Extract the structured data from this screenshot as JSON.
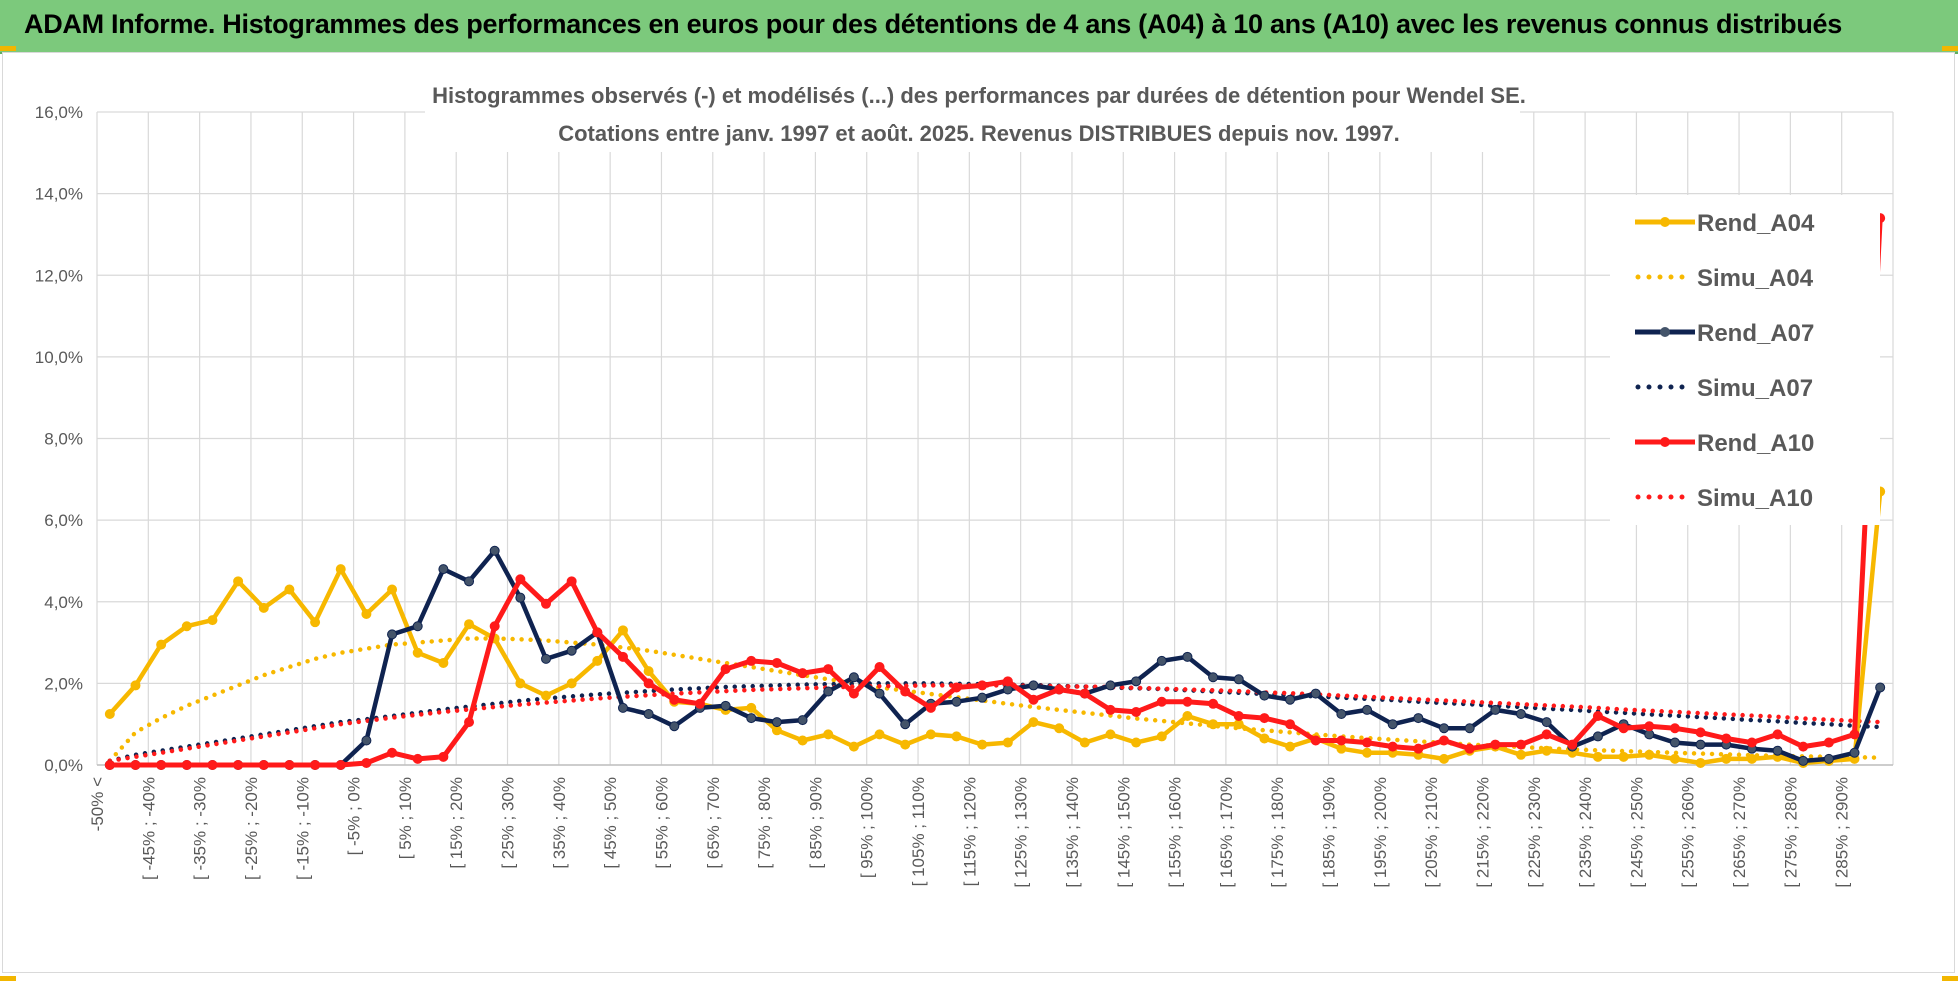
{
  "banner": {
    "title": "ADAM Informe. Histogrammes des performances en euros pour des détentions de 4 ans (A04) à 10 ans (A10) avec les revenus connus distribués"
  },
  "colors": {
    "banner_bg": "#7cc97c",
    "corner_accent": "#f2b600",
    "grid": "#d9d9d9",
    "text": "#595959"
  },
  "chart_data": {
    "type": "line",
    "title_lines": [
      "Histogrammes observés (-) et modélisés (...) des performances par durées de détention pour Wendel SE.",
      "Cotations entre janv. 1997 et août. 2025. Revenus DISTRIBUES depuis nov. 1997."
    ],
    "xlabel": "",
    "ylabel": "",
    "ylim": [
      0,
      0.16
    ],
    "yticks": [
      "0,0%",
      "2,0%",
      "4,0%",
      "6,0%",
      "8,0%",
      "10,0%",
      "12,0%",
      "14,0%",
      "16,0%"
    ],
    "grid": true,
    "legend_position": "right",
    "x_labels": [
      "-50% <",
      "[ -45% ; -40%",
      "[ -35% ; -30%",
      "[ -25% ; -20%",
      "[ -15% ; -10%",
      "[ -5% ; 0%",
      "[ 5% ; 10%",
      "[ 15% ; 20%",
      "[ 25% ; 30%",
      "[ 35% ; 40%",
      "[ 45% ; 50%",
      "[ 55% ; 60%",
      "[ 65% ; 70%",
      "[ 75% ; 80%",
      "[ 85% ; 90%",
      "[ 95% ; 100%",
      "[ 105% ; 110%",
      "[ 115% ; 120%",
      "[ 125% ; 130%",
      "[ 135% ; 140%",
      "[ 145% ; 150%",
      "[ 155% ; 160%",
      "[ 165% ; 170%",
      "[ 175% ; 180%",
      "[ 185% ; 190%",
      "[ 195% ; 200%",
      "[ 205% ; 210%",
      "[ 215% ; 220%",
      "[ 225% ; 230%",
      "[ 235% ; 240%",
      "[ 245% ; 250%",
      "[ 255% ; 260%",
      "[ 265% ; 270%",
      "[ 275% ; 280%",
      "[ 285% ; 290%"
    ],
    "series": [
      {
        "name": "Rend_A04",
        "color": "#f7b800",
        "style": "solid",
        "values": [
          0.0125,
          0.0195,
          0.0295,
          0.034,
          0.0355,
          0.045,
          0.0385,
          0.043,
          0.035,
          0.048,
          0.037,
          0.043,
          0.0275,
          0.025,
          0.0345,
          0.031,
          0.02,
          0.017,
          0.02,
          0.0255,
          0.033,
          0.023,
          0.0155,
          0.015,
          0.0135,
          0.014,
          0.0085,
          0.006,
          0.0075,
          0.0045,
          0.0075,
          0.005,
          0.0075,
          0.007,
          0.005,
          0.0055,
          0.0105,
          0.009,
          0.0055,
          0.0075,
          0.0055,
          0.007,
          0.012,
          0.01,
          0.01,
          0.0065,
          0.0045,
          0.0065,
          0.004,
          0.003,
          0.003,
          0.0025,
          0.0015,
          0.0035,
          0.0045,
          0.0025,
          0.0035,
          0.003,
          0.002,
          0.002,
          0.0025,
          0.0015,
          0.0005,
          0.0015,
          0.0015,
          0.002,
          0.0005,
          0.001,
          0.0015,
          0.067
        ]
      },
      {
        "name": "Simu_A04",
        "color": "#f7b800",
        "style": "dotted",
        "values": [
          0.001,
          0.008,
          0.0115,
          0.0145,
          0.017,
          0.0195,
          0.022,
          0.024,
          0.026,
          0.0275,
          0.0285,
          0.0295,
          0.03,
          0.0305,
          0.031,
          0.031,
          0.0308,
          0.0305,
          0.03,
          0.0295,
          0.0288,
          0.028,
          0.027,
          0.026,
          0.025,
          0.024,
          0.023,
          0.022,
          0.021,
          0.02,
          0.019,
          0.0182,
          0.0174,
          0.0166,
          0.0158,
          0.015,
          0.0142,
          0.0135,
          0.0128,
          0.0121,
          0.0114,
          0.0108,
          0.0102,
          0.0096,
          0.009,
          0.0085,
          0.008,
          0.0075,
          0.007,
          0.0066,
          0.0062,
          0.0058,
          0.0054,
          0.005,
          0.0047,
          0.0044,
          0.0041,
          0.0038,
          0.0036,
          0.0034,
          0.0032,
          0.003,
          0.0028,
          0.0026,
          0.0024,
          0.0022,
          0.0021,
          0.002,
          0.0019,
          0.0018
        ]
      },
      {
        "name": "Rend_A07",
        "color": "#0f2350",
        "style": "solid",
        "values": [
          0.0,
          0.0,
          0.0,
          0.0,
          0.0,
          0.0,
          0.0,
          0.0,
          0.0,
          0.0,
          0.006,
          0.032,
          0.034,
          0.048,
          0.045,
          0.0525,
          0.041,
          0.026,
          0.028,
          0.0325,
          0.014,
          0.0125,
          0.0095,
          0.014,
          0.0145,
          0.0115,
          0.0105,
          0.011,
          0.018,
          0.0215,
          0.0175,
          0.01,
          0.015,
          0.0155,
          0.0165,
          0.0185,
          0.0195,
          0.0185,
          0.0175,
          0.0195,
          0.0205,
          0.0255,
          0.0265,
          0.0215,
          0.021,
          0.017,
          0.016,
          0.0175,
          0.0125,
          0.0135,
          0.01,
          0.0115,
          0.009,
          0.009,
          0.0135,
          0.0125,
          0.0105,
          0.0045,
          0.007,
          0.01,
          0.0075,
          0.0055,
          0.005,
          0.005,
          0.004,
          0.0035,
          0.001,
          0.0015,
          0.003,
          0.019
        ]
      },
      {
        "name": "Simu_A07",
        "color": "#0f2350",
        "style": "dotted",
        "values": [
          0.001,
          0.0025,
          0.0035,
          0.0045,
          0.0055,
          0.0065,
          0.0075,
          0.0085,
          0.0095,
          0.0105,
          0.0112,
          0.012,
          0.0128,
          0.0136,
          0.0143,
          0.015,
          0.0157,
          0.0163,
          0.0168,
          0.0173,
          0.0177,
          0.0181,
          0.0185,
          0.0188,
          0.0191,
          0.0193,
          0.0195,
          0.0197,
          0.0198,
          0.0199,
          0.02,
          0.02,
          0.02,
          0.0199,
          0.0198,
          0.0197,
          0.0196,
          0.0194,
          0.0192,
          0.019,
          0.0188,
          0.0186,
          0.0183,
          0.018,
          0.0177,
          0.0174,
          0.0171,
          0.0168,
          0.0165,
          0.0162,
          0.0159,
          0.0155,
          0.0152,
          0.0149,
          0.0145,
          0.0142,
          0.0138,
          0.0135,
          0.0131,
          0.0128,
          0.0124,
          0.0121,
          0.0117,
          0.0114,
          0.011,
          0.0107,
          0.0103,
          0.01,
          0.0096,
          0.0093
        ]
      },
      {
        "name": "Rend_A10",
        "color": "#ff1a1a",
        "style": "solid",
        "values": [
          0.0,
          0.0,
          0.0,
          0.0,
          0.0,
          0.0,
          0.0,
          0.0,
          0.0,
          0.0,
          0.0005,
          0.003,
          0.0015,
          0.002,
          0.0105,
          0.034,
          0.0455,
          0.0395,
          0.045,
          0.0325,
          0.0265,
          0.02,
          0.016,
          0.015,
          0.0235,
          0.0255,
          0.025,
          0.0225,
          0.0235,
          0.0175,
          0.024,
          0.018,
          0.014,
          0.019,
          0.0195,
          0.0205,
          0.016,
          0.0185,
          0.0175,
          0.0135,
          0.013,
          0.0155,
          0.0155,
          0.015,
          0.012,
          0.0115,
          0.01,
          0.006,
          0.006,
          0.0055,
          0.0045,
          0.004,
          0.006,
          0.004,
          0.005,
          0.005,
          0.0075,
          0.005,
          0.012,
          0.009,
          0.0095,
          0.009,
          0.008,
          0.0065,
          0.0055,
          0.0075,
          0.0045,
          0.0055,
          0.0075,
          0.134
        ]
      },
      {
        "name": "Simu_A10",
        "color": "#ff1a1a",
        "style": "dotted",
        "values": [
          0.001,
          0.002,
          0.003,
          0.004,
          0.005,
          0.006,
          0.007,
          0.008,
          0.009,
          0.01,
          0.0108,
          0.0116,
          0.0123,
          0.013,
          0.0136,
          0.0142,
          0.0148,
          0.0153,
          0.0158,
          0.0163,
          0.0167,
          0.0171,
          0.0175,
          0.0178,
          0.0181,
          0.0184,
          0.0186,
          0.0188,
          0.019,
          0.0192,
          0.0193,
          0.0194,
          0.0195,
          0.0195,
          0.0195,
          0.0195,
          0.0194,
          0.0193,
          0.0192,
          0.0191,
          0.0189,
          0.0187,
          0.0185,
          0.0183,
          0.0181,
          0.0178,
          0.0176,
          0.0173,
          0.017,
          0.0167,
          0.0164,
          0.0161,
          0.0158,
          0.0155,
          0.0152,
          0.0149,
          0.0146,
          0.0143,
          0.014,
          0.0136,
          0.0133,
          0.013,
          0.0127,
          0.0124,
          0.0121,
          0.0118,
          0.0114,
          0.0111,
          0.0108,
          0.0105
        ]
      }
    ]
  }
}
